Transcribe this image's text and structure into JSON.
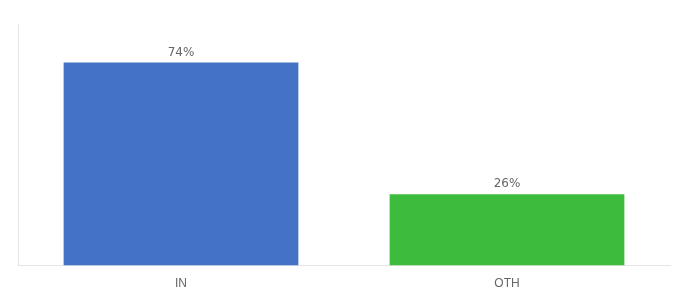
{
  "chart_data": {
    "type": "bar",
    "categories": [
      "IN",
      "OTH"
    ],
    "values": [
      74,
      26
    ],
    "value_labels": [
      "74%",
      "26%"
    ],
    "colors": [
      "#4472c4",
      "#3dbb3d"
    ],
    "data_labels": true,
    "ylim": [
      0,
      88
    ],
    "tick_labels": "x",
    "grid": false
  }
}
